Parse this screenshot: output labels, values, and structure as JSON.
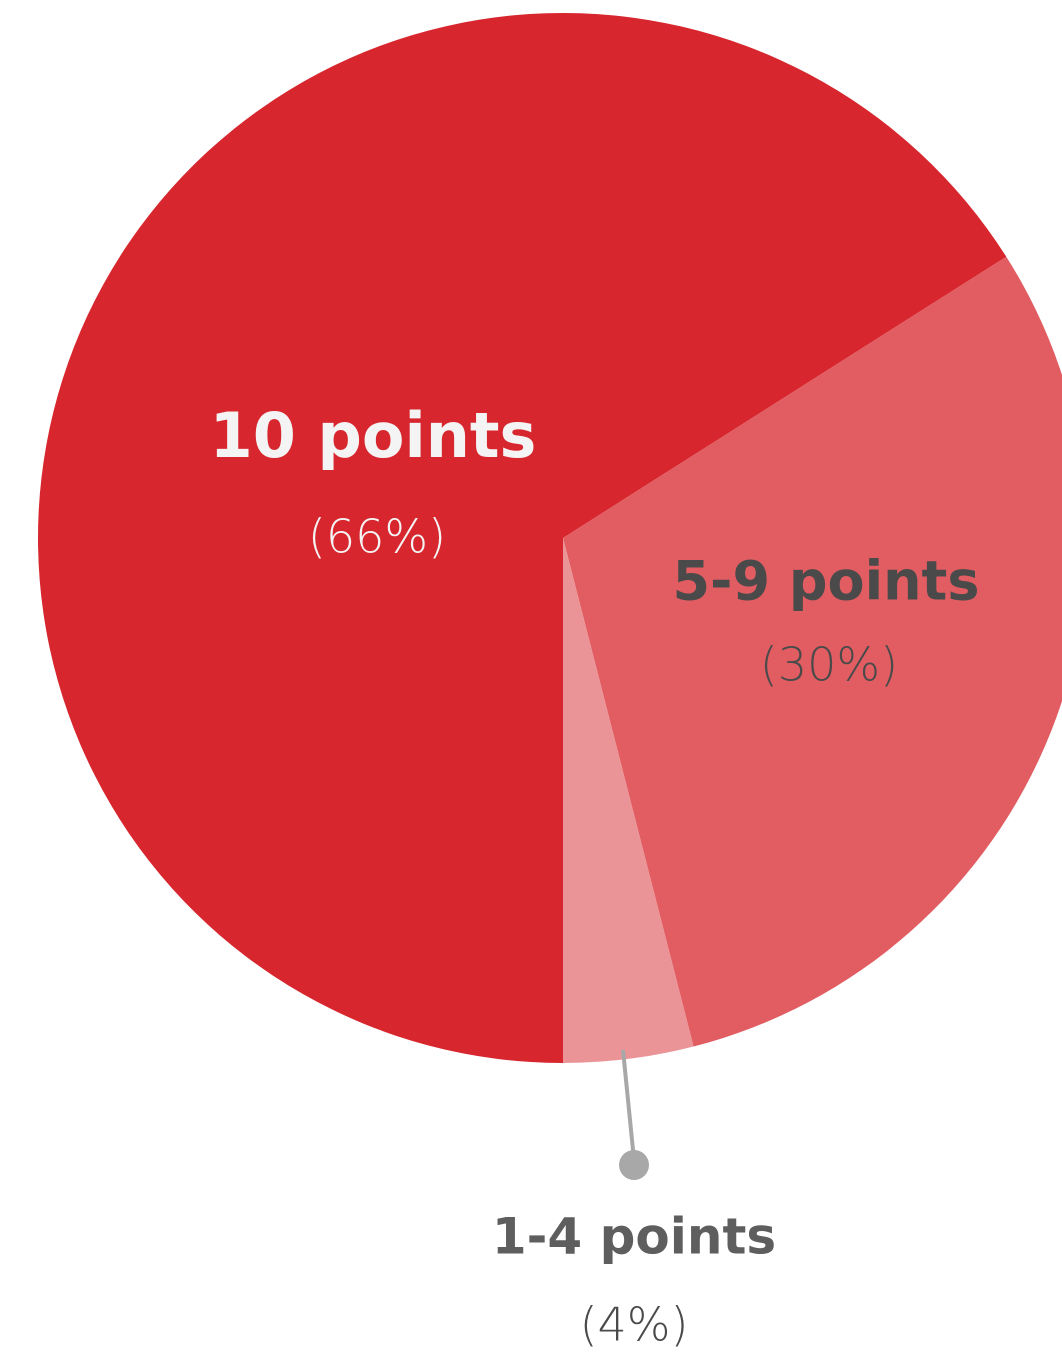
{
  "chart_data": {
    "type": "pie",
    "categories": [
      "10 points",
      "5-9 points",
      "1-4 points"
    ],
    "values": [
      66,
      30,
      4
    ],
    "value_labels": [
      "(66%)",
      "(30%)",
      "(4%)"
    ],
    "colors": [
      "#d7262d",
      "#e15d62",
      "#eb9498"
    ]
  }
}
